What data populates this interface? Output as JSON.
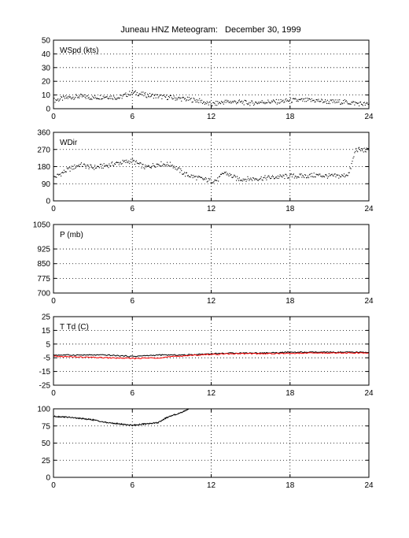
{
  "figure": {
    "title": "Juneau HNZ Meteogram:   December 30, 1999"
  },
  "chart_data": [
    {
      "type": "scatter",
      "label": "WSpd (kts)",
      "xlim": [
        0,
        24
      ],
      "ylim": [
        0,
        50
      ],
      "xticks": [
        "0",
        "6",
        "12",
        "18",
        "24"
      ],
      "yticks": [
        "0",
        "10",
        "20",
        "30",
        "40",
        "50"
      ],
      "grid": true,
      "series": [
        {
          "color": "#000000",
          "x": [
            0,
            1,
            2,
            3,
            4,
            5,
            6,
            6.5,
            7,
            8,
            9,
            10,
            11,
            12,
            12.5,
            13,
            14,
            15,
            16,
            17,
            18,
            19,
            20,
            21,
            22,
            23,
            24
          ],
          "y": [
            6,
            8,
            9,
            8,
            9,
            8,
            12,
            11,
            10,
            9,
            8,
            7,
            6,
            3,
            4,
            5,
            5,
            4,
            5,
            5,
            6,
            6,
            6,
            5,
            5,
            4,
            3
          ]
        }
      ]
    },
    {
      "type": "scatter",
      "label": "WDir",
      "xlim": [
        0,
        24
      ],
      "ylim": [
        0,
        360
      ],
      "xticks": [
        "0",
        "6",
        "12",
        "18",
        "24"
      ],
      "yticks": [
        "0",
        "90",
        "180",
        "270",
        "360"
      ],
      "grid": true,
      "series": [
        {
          "color": "#000000",
          "x": [
            0,
            1,
            2,
            3,
            4,
            5,
            6,
            7,
            8,
            9,
            10,
            11,
            12,
            12.5,
            13,
            14,
            15,
            16,
            17,
            18,
            19,
            20,
            21,
            22,
            22.5,
            23,
            24
          ],
          "y": [
            120,
            160,
            190,
            175,
            185,
            200,
            210,
            175,
            195,
            190,
            140,
            120,
            105,
            110,
            150,
            115,
            115,
            120,
            125,
            130,
            130,
            135,
            130,
            130,
            145,
            270,
            265
          ]
        }
      ]
    },
    {
      "type": "line",
      "label": "P (mb)",
      "xlim": [
        0,
        24
      ],
      "ylim": [
        700,
        1050
      ],
      "xticks": [
        "0",
        "6",
        "12",
        "18",
        "24"
      ],
      "yticks": [
        "700",
        "775",
        "850",
        "925",
        "1050"
      ],
      "grid": true,
      "series": []
    },
    {
      "type": "line",
      "label": "T Td (C)",
      "xlim": [
        0,
        24
      ],
      "ylim": [
        -25,
        25
      ],
      "xticks": [
        "0",
        "6",
        "12",
        "18",
        "24"
      ],
      "yticks": [
        "-25",
        "-15",
        "-5",
        "5",
        "15",
        "25"
      ],
      "grid": true,
      "series": [
        {
          "color": "#000000",
          "x": [
            0,
            2,
            4,
            6,
            8,
            10,
            12,
            14,
            16,
            18,
            20,
            22,
            24
          ],
          "y": [
            -3,
            -3,
            -3,
            -4,
            -3,
            -3,
            -2,
            -1.5,
            -1.5,
            -1,
            -1,
            -1,
            -1
          ]
        },
        {
          "color": "#ff0000",
          "x": [
            0,
            2,
            4,
            6,
            8,
            10,
            12,
            14,
            16,
            18,
            20,
            22,
            24
          ],
          "y": [
            -4,
            -4.5,
            -5,
            -5.5,
            -5,
            -3.5,
            -2.5,
            -2,
            -2,
            -1.8,
            -1.5,
            -1.5,
            -1.5
          ]
        }
      ]
    },
    {
      "type": "line",
      "label": "",
      "xlim": [
        0,
        24
      ],
      "ylim": [
        0,
        100
      ],
      "xticks": [
        "0",
        "6",
        "12",
        "18",
        "24"
      ],
      "yticks": [
        "0",
        "25",
        "50",
        "75",
        "100"
      ],
      "grid": true,
      "series": [
        {
          "color": "#000000",
          "x": [
            0,
            1,
            2,
            3,
            4,
            5,
            6,
            7,
            8,
            8.5,
            9,
            9.5,
            10,
            10.3
          ],
          "y": [
            89,
            88,
            86,
            84,
            80,
            78,
            76,
            78,
            80,
            86,
            90,
            93,
            97,
            100
          ]
        }
      ]
    }
  ]
}
